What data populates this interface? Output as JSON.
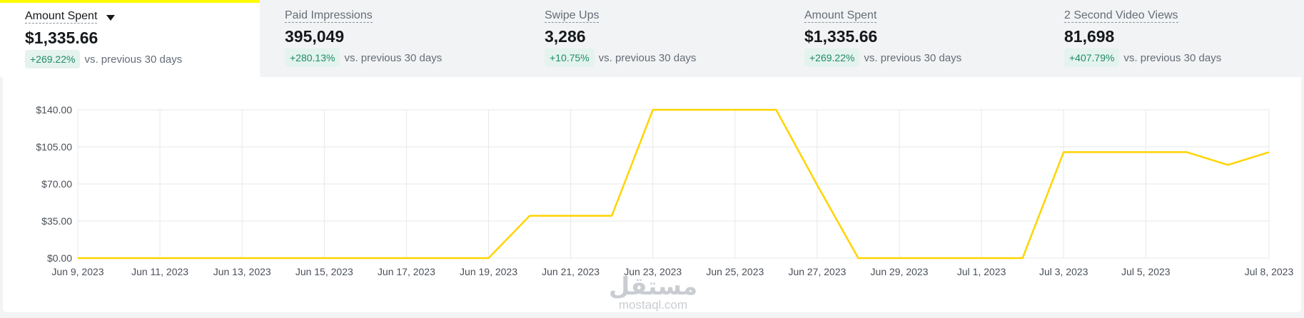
{
  "metrics": [
    {
      "label": "Amount Spent",
      "value": "$1,335.66",
      "change": "+269.22%",
      "vs": "vs. previous 30 days",
      "active": true
    },
    {
      "label": "Paid Impressions",
      "value": "395,049",
      "change": "+280.13%",
      "vs": "vs. previous 30 days",
      "active": false
    },
    {
      "label": "Swipe Ups",
      "value": "3,286",
      "change": "+10.75%",
      "vs": "vs. previous 30 days",
      "active": false
    },
    {
      "label": "Amount Spent",
      "value": "$1,335.66",
      "change": "+269.22%",
      "vs": "vs. previous 30 days",
      "active": false
    },
    {
      "label": "2 Second Video Views",
      "value": "81,698",
      "change": "+407.79%",
      "vs": "vs. previous 30 days",
      "active": false
    }
  ],
  "watermark": {
    "main": "مستقل",
    "sub": "mostaql.com"
  },
  "chart_data": {
    "type": "line",
    "ylim": [
      0,
      140
    ],
    "yticks": [
      "$0.00",
      "$35.00",
      "$70.00",
      "$105.00",
      "$140.00"
    ],
    "ytick_values": [
      0,
      35,
      70,
      105,
      140
    ],
    "xtick_labels": [
      "Jun 9, 2023",
      "Jun 11, 2023",
      "Jun 13, 2023",
      "Jun 15, 2023",
      "Jun 17, 2023",
      "Jun 19, 2023",
      "Jun 21, 2023",
      "Jun 23, 2023",
      "Jun 25, 2023",
      "Jun 27, 2023",
      "Jun 29, 2023",
      "Jul 1, 2023",
      "Jul 3, 2023",
      "Jul 5, 2023",
      "Jul 8, 2023"
    ],
    "xtick_days": [
      0,
      2,
      4,
      6,
      8,
      10,
      12,
      14,
      16,
      18,
      20,
      22,
      24,
      26,
      29
    ],
    "x": [
      "Jun 9",
      "Jun 10",
      "Jun 11",
      "Jun 12",
      "Jun 13",
      "Jun 14",
      "Jun 15",
      "Jun 16",
      "Jun 17",
      "Jun 18",
      "Jun 19",
      "Jun 20",
      "Jun 21",
      "Jun 22",
      "Jun 23",
      "Jun 24",
      "Jun 25",
      "Jun 26",
      "Jun 27",
      "Jun 28",
      "Jun 29",
      "Jun 30",
      "Jul 1",
      "Jul 2",
      "Jul 3",
      "Jul 4",
      "Jul 5",
      "Jul 6",
      "Jul 7",
      "Jul 8"
    ],
    "values": [
      0,
      0,
      0,
      0,
      0,
      0,
      0,
      0,
      0,
      0,
      0,
      40,
      40,
      40,
      140,
      140,
      140,
      140,
      69,
      0,
      0,
      0,
      0,
      0,
      100,
      100,
      100,
      100,
      88,
      100
    ],
    "line_color": "#ffd400",
    "grid": true
  }
}
